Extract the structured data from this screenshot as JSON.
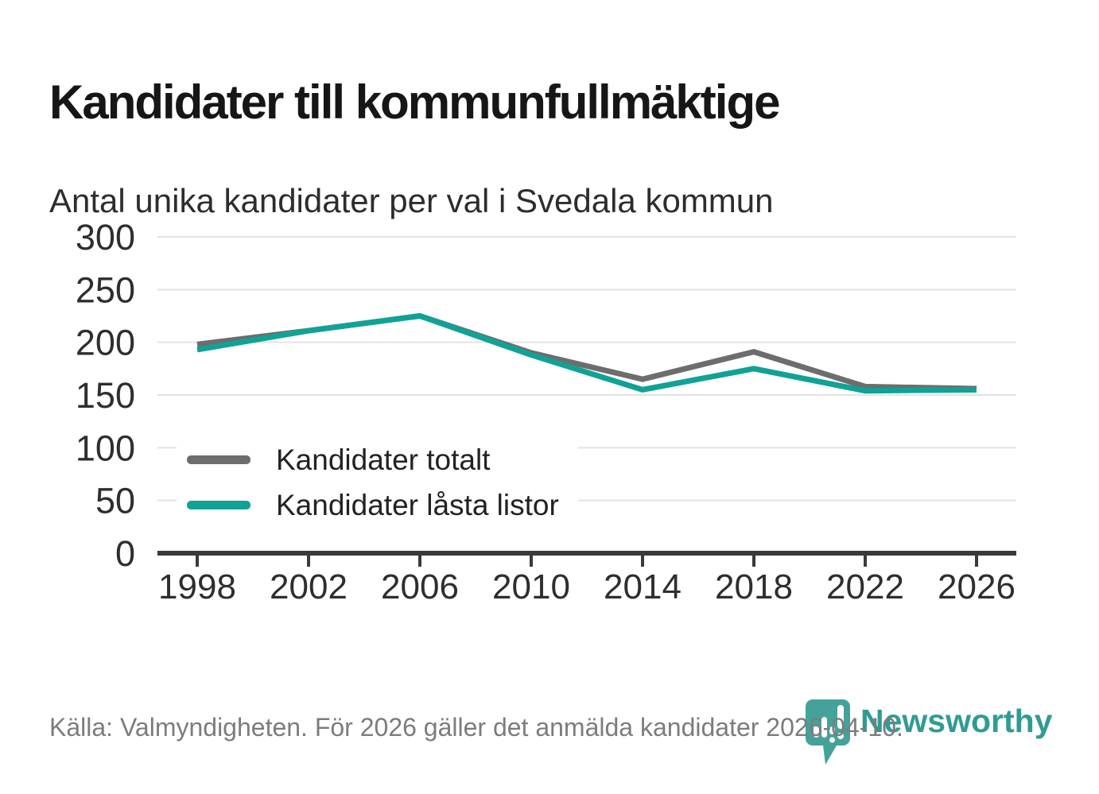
{
  "header": {
    "title": "Kandidater till kommunfullmäktige",
    "subtitle": "Antal unika kandidater per val i Svedala kommun"
  },
  "footer": {
    "source": "Källa: Valmyndigheten. För 2026 gäller det anmälda kandidater 2026-04-10.",
    "brand": "Newsworthy"
  },
  "colors": {
    "series_total_gray": "#6d6d6d",
    "series_locked_teal": "#11a296",
    "grid": "#e3e3e3",
    "axis": "#3a3a3a",
    "tick_label": "#2e2e2e",
    "title_text": "#161616",
    "subtitle_text": "#2d2d2d",
    "source_text": "#7c7c7c",
    "brand_wordmark_teal": "#2f9c94",
    "brand_pin_teal": "#45a29b"
  },
  "chart_data": {
    "type": "line",
    "title": "Kandidater till kommunfullmäktige",
    "subtitle": "Antal unika kandidater per val i Svedala kommun",
    "x": [
      1998,
      2002,
      2006,
      2010,
      2014,
      2018,
      2022,
      2026
    ],
    "series": [
      {
        "name": "Kandidater totalt",
        "color": "#6d6d6d",
        "values": [
          198,
          211,
          225,
          190,
          165,
          191,
          158,
          156
        ]
      },
      {
        "name": "Kandidater låsta listor",
        "color": "#11a296",
        "values": [
          193,
          211,
          225,
          188,
          155,
          175,
          154,
          155
        ]
      }
    ],
    "xlabel": "",
    "ylabel": "",
    "ylim": [
      0,
      300
    ],
    "ytick_step": 50,
    "yticks": [
      0,
      50,
      100,
      150,
      200,
      250,
      300
    ],
    "grid": true,
    "legend_position": "inside-left",
    "source": "Källa: Valmyndigheten. För 2026 gäller det anmälda kandidater 2026-04-10."
  }
}
